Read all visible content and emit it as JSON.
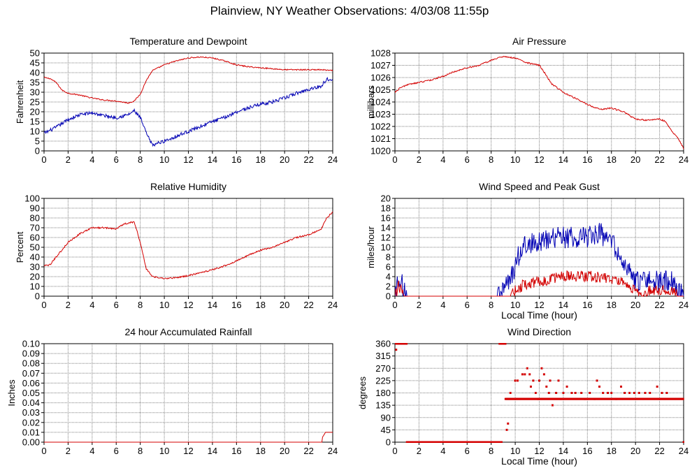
{
  "page": {
    "title": "Plainview, NY Weather Observations: 4/03/08 11:55p"
  },
  "colors": {
    "red": "#d40000",
    "blue": "#0000b4",
    "grid": "#808080",
    "axis": "#000000"
  },
  "chart_data": [
    {
      "id": "temp",
      "type": "line",
      "title": "Temperature and Dewpoint",
      "xlabel": "",
      "ylabel": "Fahrenheit",
      "xlim": [
        0,
        24
      ],
      "ylim": [
        0,
        50
      ],
      "xticks": [
        0,
        2,
        4,
        6,
        8,
        10,
        12,
        14,
        16,
        18,
        20,
        22,
        24
      ],
      "yticks": [
        0,
        5,
        10,
        15,
        20,
        25,
        30,
        35,
        40,
        45,
        50
      ],
      "grid": true,
      "series": [
        {
          "color": "#d40000",
          "noise": 0.3,
          "x": [
            0,
            0.5,
            1,
            1.5,
            2,
            3,
            4,
            5,
            6,
            6.5,
            7,
            7.5,
            8,
            8.5,
            9,
            10,
            11,
            12,
            13,
            14,
            15,
            16,
            17,
            18,
            19,
            20,
            21,
            22,
            23,
            24
          ],
          "y": [
            37.5,
            37,
            35,
            31,
            29.5,
            28.5,
            27,
            26,
            25.5,
            25,
            24.5,
            25.5,
            29,
            36,
            41,
            44,
            46,
            47.5,
            48,
            47.5,
            46,
            44,
            43,
            42.5,
            42,
            41.5,
            41.5,
            41.5,
            41.5,
            41
          ]
        },
        {
          "color": "#0000b4",
          "noise": 0.9,
          "x": [
            0,
            0.5,
            1,
            2,
            3,
            4,
            5,
            6,
            7,
            7.5,
            8,
            8.5,
            9,
            9.5,
            10,
            11,
            12,
            13,
            14,
            15,
            16,
            17,
            18,
            19,
            20,
            21,
            22,
            23,
            23.5,
            24
          ],
          "y": [
            9,
            10.5,
            12,
            16,
            18.5,
            19.5,
            18,
            17,
            18.5,
            20.5,
            17,
            9,
            3,
            4,
            5,
            7.5,
            10,
            12.5,
            15,
            17,
            20,
            22,
            24,
            25,
            27,
            29.5,
            31.5,
            33,
            36.5,
            37
          ]
        }
      ]
    },
    {
      "id": "pressure",
      "type": "line",
      "title": "Air Pressure",
      "xlabel": "",
      "ylabel": "millibars",
      "xlim": [
        0,
        24
      ],
      "ylim": [
        1020,
        1028
      ],
      "xticks": [
        0,
        2,
        4,
        6,
        8,
        10,
        12,
        14,
        16,
        18,
        20,
        22,
        24
      ],
      "yticks": [
        1020,
        1021,
        1022,
        1023,
        1024,
        1025,
        1026,
        1027,
        1028
      ],
      "grid": true,
      "series": [
        {
          "color": "#d40000",
          "noise": 0.06,
          "x": [
            0,
            0.5,
            1,
            2,
            3,
            4,
            5,
            6,
            7,
            8,
            8.5,
            9,
            10,
            10.5,
            11,
            12,
            12.5,
            13,
            14,
            15,
            16,
            17,
            18,
            19,
            20,
            21,
            22,
            22.5,
            23,
            23.5,
            24
          ],
          "y": [
            1024.8,
            1025.2,
            1025.4,
            1025.6,
            1025.8,
            1026.1,
            1026.5,
            1026.8,
            1027.0,
            1027.4,
            1027.6,
            1027.7,
            1027.6,
            1027.4,
            1027.2,
            1027.0,
            1026.3,
            1025.5,
            1024.8,
            1024.3,
            1023.8,
            1023.4,
            1023.5,
            1023.2,
            1022.6,
            1022.5,
            1022.6,
            1022.4,
            1021.6,
            1021.1,
            1020.2
          ]
        }
      ]
    },
    {
      "id": "humidity",
      "type": "line",
      "title": "Relative Humidity",
      "xlabel": "",
      "ylabel": "Percent",
      "xlim": [
        0,
        24
      ],
      "ylim": [
        0,
        100
      ],
      "xticks": [
        0,
        2,
        4,
        6,
        8,
        10,
        12,
        14,
        16,
        18,
        20,
        22,
        24
      ],
      "yticks": [
        0,
        10,
        20,
        30,
        40,
        50,
        60,
        70,
        80,
        90,
        100
      ],
      "grid": true,
      "series": [
        {
          "color": "#d40000",
          "noise": 0.8,
          "x": [
            0,
            0.5,
            1,
            2,
            3,
            4,
            5,
            6,
            6.5,
            7,
            7.5,
            8,
            8.5,
            9,
            10,
            11,
            12,
            13,
            14,
            15,
            16,
            17,
            18,
            19,
            20,
            21,
            22,
            23,
            23.5,
            24
          ],
          "y": [
            31,
            32,
            40,
            55,
            64,
            70,
            70,
            69,
            73,
            75,
            76,
            55,
            28,
            20,
            18,
            19,
            21,
            24,
            27,
            31,
            36,
            42,
            47,
            50,
            55,
            60,
            63,
            68,
            80,
            86
          ]
        }
      ]
    },
    {
      "id": "wind",
      "type": "line",
      "title": "Wind Speed and Peak Gust",
      "xlabel": "Local Time (hour)",
      "ylabel": "miles/hour",
      "xlim": [
        0,
        24
      ],
      "ylim": [
        0,
        20
      ],
      "xticks": [
        0,
        2,
        4,
        6,
        8,
        10,
        12,
        14,
        16,
        18,
        20,
        22,
        24
      ],
      "yticks": [
        0,
        2,
        4,
        6,
        8,
        10,
        12,
        14,
        16,
        18,
        20
      ],
      "grid": true,
      "series": [
        {
          "color": "#0000b4",
          "noise": 2.2,
          "x": [
            0,
            0.2,
            0.5,
            0.8,
            1,
            1.5,
            8.5,
            9,
            9.5,
            10,
            10.5,
            11,
            12,
            13,
            14,
            15,
            16,
            17,
            18,
            18.5,
            19,
            19.5,
            20,
            21,
            22,
            23,
            23.5,
            24
          ],
          "y": [
            0,
            3,
            3,
            1,
            0,
            0,
            0,
            1,
            3,
            6,
            10,
            11,
            11,
            12,
            12,
            12,
            12,
            13,
            11,
            9,
            6,
            5,
            3,
            3,
            3,
            3,
            1,
            0
          ]
        },
        {
          "color": "#d40000",
          "noise": 1.2,
          "x": [
            0,
            0.3,
            0.8,
            9.5,
            10,
            10.5,
            11,
            12,
            13,
            14,
            15,
            16,
            17,
            18,
            19,
            20,
            20.5,
            21,
            22,
            23,
            23.5,
            24
          ],
          "y": [
            0,
            2,
            0,
            0,
            1,
            2,
            2.5,
            3,
            3.5,
            4,
            4,
            4,
            4,
            3.5,
            2.5,
            1,
            0,
            1,
            1,
            1,
            0,
            0
          ]
        }
      ]
    },
    {
      "id": "rain",
      "type": "line",
      "title": "24 hour Accumulated Rainfall",
      "xlabel": "",
      "ylabel": "Inches",
      "xlim": [
        0,
        24
      ],
      "ylim": [
        0,
        0.1
      ],
      "xticks": [
        0,
        2,
        4,
        6,
        8,
        10,
        12,
        14,
        16,
        18,
        20,
        22,
        24
      ],
      "yticks": [
        0,
        0.01,
        0.02,
        0.03,
        0.04,
        0.05,
        0.06,
        0.07,
        0.08,
        0.09,
        0.1
      ],
      "yticklabels": [
        "0.00",
        "0.01",
        "0.02",
        "0.03",
        "0.04",
        "0.05",
        "0.06",
        "0.07",
        "0.08",
        "0.09",
        "0.10"
      ],
      "grid": true,
      "series": [
        {
          "color": "#d40000",
          "noise": 0,
          "x": [
            0,
            23.1,
            23.15,
            23.4,
            24
          ],
          "y": [
            0,
            0,
            0.005,
            0.01,
            0.01
          ]
        }
      ]
    },
    {
      "id": "direction",
      "type": "scatter",
      "title": "Wind Direction",
      "xlabel": "Local Time (hour)",
      "ylabel": "degrees",
      "xlim": [
        0,
        24
      ],
      "ylim": [
        0,
        360
      ],
      "xticks": [
        0,
        2,
        4,
        6,
        8,
        10,
        12,
        14,
        16,
        18,
        20,
        22,
        24
      ],
      "yticks": [
        0,
        45,
        90,
        135,
        180,
        225,
        270,
        315,
        360
      ],
      "grid": true,
      "series": [
        {
          "color": "#d40000",
          "segments": [
            {
              "x0": 0,
              "x1": 1,
              "y": 360
            },
            {
              "x0": 1,
              "x1": 8.9,
              "y": 0
            },
            {
              "x0": 8.7,
              "x1": 9.2,
              "y": 360
            },
            {
              "x0": 9.2,
              "x1": 24,
              "y": 158
            }
          ],
          "points": [
            [
              0.1,
              338
            ],
            [
              9.3,
              45
            ],
            [
              9.4,
              68
            ],
            [
              9.6,
              180
            ],
            [
              10,
              225
            ],
            [
              10.2,
              225
            ],
            [
              10.6,
              248
            ],
            [
              10.8,
              248
            ],
            [
              11,
              270
            ],
            [
              11.2,
              248
            ],
            [
              11.3,
              203
            ],
            [
              11.5,
              225
            ],
            [
              11.7,
              180
            ],
            [
              11.9,
              158
            ],
            [
              12,
              225
            ],
            [
              12.2,
              270
            ],
            [
              12.4,
              248
            ],
            [
              12.6,
              203
            ],
            [
              12.8,
              180
            ],
            [
              12.9,
              225
            ],
            [
              13.1,
              135
            ],
            [
              13.4,
              180
            ],
            [
              13.6,
              225
            ],
            [
              13.8,
              158
            ],
            [
              14,
              180
            ],
            [
              14.3,
              203
            ],
            [
              14.7,
              180
            ],
            [
              15,
              180
            ],
            [
              15.5,
              180
            ],
            [
              15.8,
              158
            ],
            [
              16.2,
              180
            ],
            [
              16.6,
              158
            ],
            [
              16.8,
              225
            ],
            [
              17,
              203
            ],
            [
              17.3,
              180
            ],
            [
              17.7,
              180
            ],
            [
              18,
              180
            ],
            [
              18.4,
              158
            ],
            [
              18.8,
              203
            ],
            [
              19.1,
              180
            ],
            [
              19.5,
              180
            ],
            [
              19.9,
              180
            ],
            [
              20.3,
              180
            ],
            [
              20.8,
              180
            ],
            [
              21.2,
              180
            ],
            [
              21.8,
              203
            ],
            [
              22.2,
              180
            ],
            [
              22.6,
              180
            ],
            [
              24,
              0
            ]
          ]
        }
      ]
    }
  ]
}
